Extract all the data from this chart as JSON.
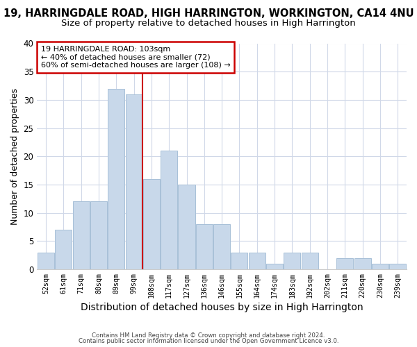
{
  "title1": "19, HARRINGDALE ROAD, HIGH HARRINGTON, WORKINGTON, CA14 4NU",
  "title2": "Size of property relative to detached houses in High Harrington",
  "xlabel": "Distribution of detached houses by size in High Harrington",
  "ylabel": "Number of detached properties",
  "footer1": "Contains HM Land Registry data © Crown copyright and database right 2024.",
  "footer2": "Contains public sector information licensed under the Open Government Licence v3.0.",
  "bar_labels": [
    "52sqm",
    "61sqm",
    "71sqm",
    "80sqm",
    "89sqm",
    "99sqm",
    "108sqm",
    "117sqm",
    "127sqm",
    "136sqm",
    "146sqm",
    "155sqm",
    "164sqm",
    "174sqm",
    "183sqm",
    "192sqm",
    "202sqm",
    "211sqm",
    "220sqm",
    "230sqm",
    "239sqm"
  ],
  "bar_values": [
    3,
    7,
    12,
    12,
    32,
    31,
    16,
    21,
    15,
    8,
    8,
    3,
    3,
    1,
    3,
    3,
    0,
    2,
    2,
    1,
    1
  ],
  "bar_color": "#c8d8ea",
  "bar_edgecolor": "#a8c0d8",
  "vline_x": 5.5,
  "vline_color": "#cc0000",
  "annotation_title": "19 HARRINGDALE ROAD: 103sqm",
  "annotation_line1": "← 40% of detached houses are smaller (72)",
  "annotation_line2": "60% of semi-detached houses are larger (108) →",
  "annotation_box_edgecolor": "#cc0000",
  "ylim": [
    0,
    40
  ],
  "yticks": [
    0,
    5,
    10,
    15,
    20,
    25,
    30,
    35,
    40
  ],
  "bg_color": "#ffffff",
  "plot_bg_color": "#ffffff",
  "title1_fontsize": 10.5,
  "title2_fontsize": 9.5,
  "xlabel_fontsize": 10,
  "ylabel_fontsize": 9
}
